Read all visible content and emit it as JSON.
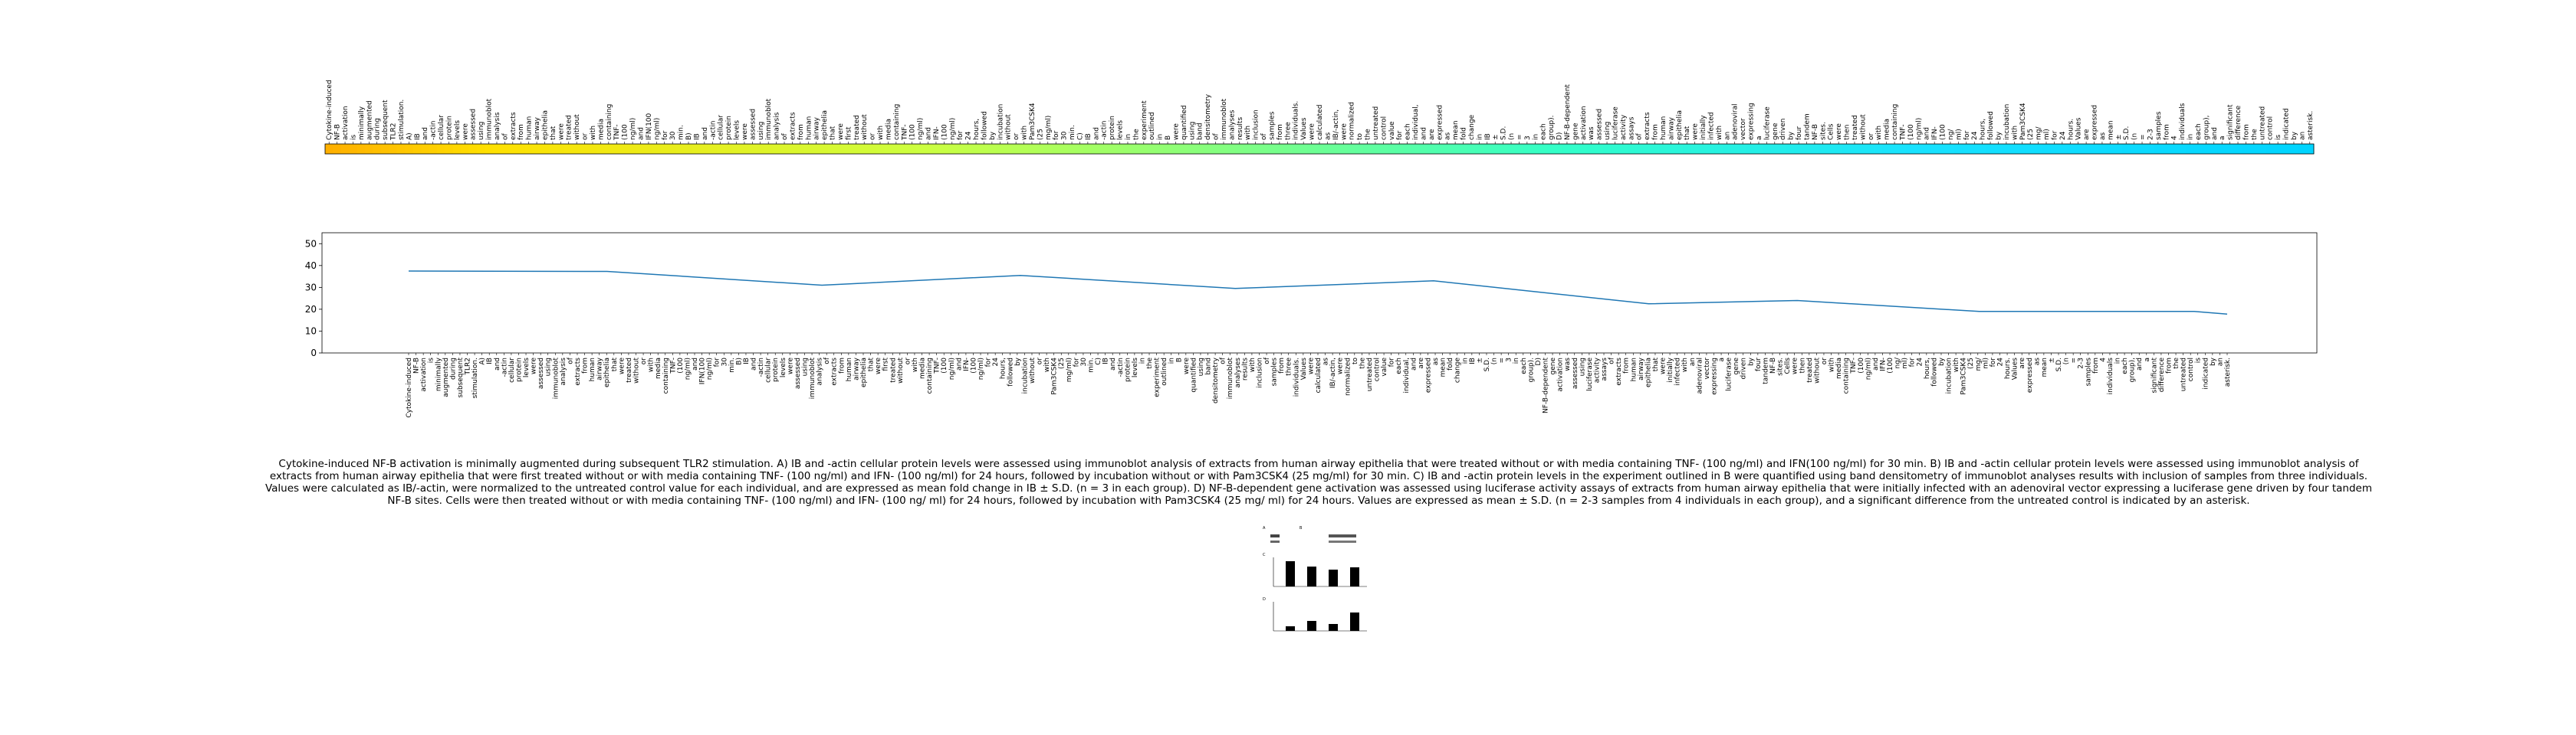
{
  "caption": "Cytokine-induced NF-B activation is minimally augmented during subsequent TLR2 stimulation. A) IB and -actin cellular protein levels were assessed using immunoblot analysis of extracts from human airway epithelia that were treated without or with media containing TNF- (100 ng/ml) and IFN(100 ng/ml) for 30 min. B) IB and -actin cellular protein levels were assessed using immunoblot analysis of extracts from human airway epithelia that were first treated without or with media containing TNF- (100 ng/ml) and IFN- (100 ng/ml) for 24 hours, followed by incubation without or with Pam3CSK4 (25 mg/ml) for 30 min. C) IB and -actin protein levels in the experiment outlined in B were quantified using band densitometry of immunoblot analyses results with inclusion of samples from three individuals. Values were calculated as IB/-actin, were normalized to the untreated control value for each individual, and are expressed as mean fold change in IB ± S.D. (n = 3 in each group). D) NF-B-dependent gene activation was assessed using luciferase activity assays of extracts from human airway epithelia that were initially infected with an adenoviral vector expressing a luciferase gene driven by four tandem NF-B sites. Cells were then treated without or with media containing TNF- (100 ng/ml) and IFN- (100 ng/ ml) for 24 hours, followed by incubation with Pam3CSK4 (25 mg/ ml) for 24 hours. Values are expressed as mean ± S.D. (n = 2-3 samples from 4 individuals in each group), and a significant difference from the untreated control is indicated by an asterisk.",
  "chart_data": [
    {
      "type": "heatmap",
      "title": "",
      "xlabel": "",
      "ylabel": "",
      "colormap": "jet-like (yellow → green → cyan)",
      "tokens": [
        "Cytokine-induced",
        "NF-B",
        "activation",
        "is",
        "minimally",
        "augmented",
        "during",
        "subsequent",
        "TLR2",
        "stimulation.",
        "A)",
        "IB",
        "and",
        "-actin",
        "cellular",
        "protein",
        "levels",
        "were",
        "assessed",
        "using",
        "immunoblot",
        "analysis",
        "of",
        "extracts",
        "from",
        "human",
        "airway",
        "epithelia",
        "that",
        "were",
        "treated",
        "without",
        "or",
        "with",
        "media",
        "containing",
        "TNF-",
        "(100",
        "ng/ml)",
        "and",
        "IFN(100",
        "ng/ml)",
        "for",
        "30",
        "min.",
        "B)",
        "IB",
        "and",
        "-actin",
        "cellular",
        "protein",
        "levels",
        "were",
        "assessed",
        "using",
        "immunoblot",
        "analysis",
        "of",
        "extracts",
        "from",
        "human",
        "airway",
        "epithelia",
        "that",
        "were",
        "first",
        "treated",
        "without",
        "or",
        "with",
        "media",
        "containing",
        "TNF-",
        "(100",
        "ng/ml)",
        "and",
        "IFN-",
        "(100",
        "ng/ml)",
        "for",
        "24",
        "hours,",
        "followed",
        "by",
        "incubation",
        "without",
        "or",
        "with",
        "Pam3CSK4",
        "(25",
        "mg/ml)",
        "for",
        "30",
        "min.",
        "C)",
        "IB",
        "and",
        "-actin",
        "protein",
        "levels",
        "in",
        "the",
        "experiment",
        "outlined",
        "in",
        "B",
        "were",
        "quantified",
        "using",
        "band",
        "densitometry",
        "of",
        "immunoblot",
        "analyses",
        "results",
        "with",
        "inclusion",
        "of",
        "samples",
        "from",
        "three",
        "individuals.",
        "Values",
        "were",
        "calculated",
        "as",
        "IB/-actin,",
        "were",
        "normalized",
        "to",
        "the",
        "untreated",
        "control",
        "value",
        "for",
        "each",
        "individual,",
        "and",
        "are",
        "expressed",
        "as",
        "mean",
        "fold",
        "change",
        "in",
        "IB",
        "±",
        "S.D.",
        "(n",
        "=",
        "3",
        "in",
        "each",
        "group).",
        "D)",
        "NF-B-dependent",
        "gene",
        "activation",
        "was",
        "assessed",
        "using",
        "luciferase",
        "activity",
        "assays",
        "of",
        "extracts",
        "from",
        "human",
        "airway",
        "epithelia",
        "that",
        "were",
        "initially",
        "infected",
        "with",
        "an",
        "adenoviral",
        "vector",
        "expressing",
        "a",
        "luciferase",
        "gene",
        "driven",
        "by",
        "four",
        "tandem",
        "NF-B",
        "sites.",
        "Cells",
        "were",
        "then",
        "treated",
        "without",
        "or",
        "with",
        "media",
        "containing",
        "TNF-",
        "(100",
        "ng/ml)",
        "and",
        "IFN-",
        "(100",
        "ng/",
        "ml)",
        "for",
        "24",
        "hours,",
        "followed",
        "by",
        "incubation",
        "with",
        "Pam3CSK4",
        "(25",
        "mg/",
        "ml)",
        "for",
        "24",
        "hours.",
        "Values",
        "are",
        "expressed",
        "as",
        "mean",
        "±",
        "S.D.",
        "(n",
        "=",
        "2-3",
        "samples",
        "from",
        "4",
        "individuals",
        "in",
        "each",
        "group),",
        "and",
        "a",
        "significant",
        "difference",
        "from",
        "the",
        "untreated",
        "control",
        "is",
        "indicated",
        "by",
        "an",
        "asterisk."
      ],
      "colors": [
        "#ffb000",
        "#ffe000",
        "#ccff40",
        "#33ffc8",
        "#18e2ff",
        "#00d4ff"
      ],
      "color_stops": [
        0,
        0.08,
        0.3,
        0.62,
        0.8,
        1
      ]
    },
    {
      "type": "line",
      "title": "",
      "xlabel": "",
      "ylabel": "",
      "ylim": [
        0,
        55
      ],
      "yticks": [
        0,
        10,
        20,
        30,
        40,
        50
      ],
      "grid": false,
      "series": [
        {
          "points": [
            [
              0,
              37.5
            ],
            [
              0.12,
              37.3
            ],
            [
              0.25,
              31
            ],
            [
              0.37,
              35.5
            ],
            [
              0.5,
              29.5
            ],
            [
              0.62,
              33
            ],
            [
              0.75,
              22.5
            ],
            [
              0.84,
              24
            ],
            [
              0.95,
              19
            ],
            [
              1.08,
              19
            ],
            [
              1.1,
              17.8
            ]
          ]
        }
      ],
      "color": "#1f77b4"
    }
  ],
  "figure_thumbnail": {
    "panel_labels": [
      "A",
      "B",
      "C",
      "D"
    ]
  }
}
